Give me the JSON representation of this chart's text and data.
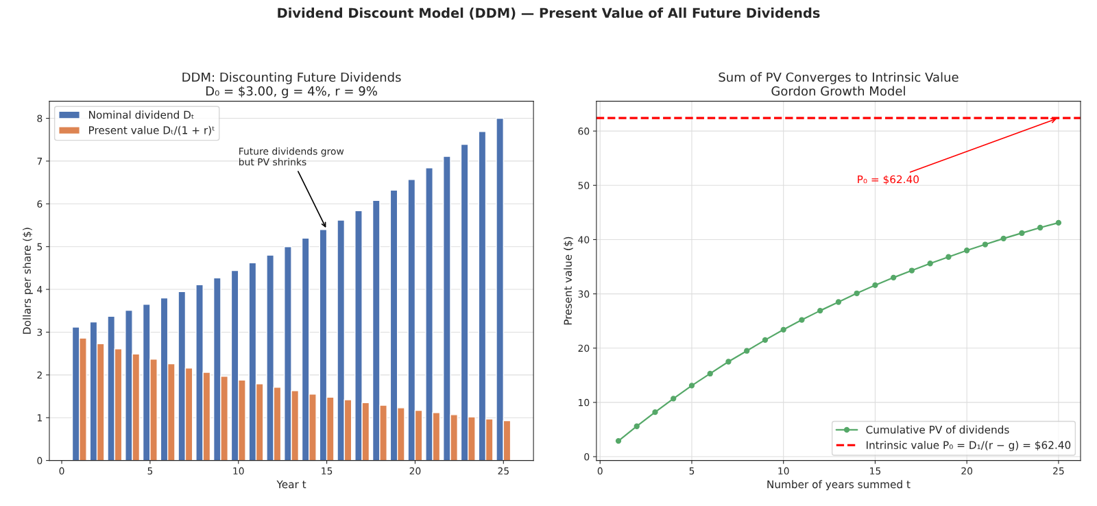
{
  "chart_data": [
    {
      "type": "bar",
      "title": "DDM: Discounting Future Dividends\nD₀ = $3.00, g = 4%, r = 9%",
      "xlabel": "Year t",
      "ylabel": "Dollars per share ($)",
      "x": [
        1,
        2,
        3,
        4,
        5,
        6,
        7,
        8,
        9,
        10,
        11,
        12,
        13,
        14,
        15,
        16,
        17,
        18,
        19,
        20,
        21,
        22,
        23,
        24,
        25
      ],
      "series": [
        {
          "name": "Nominal dividend Dₜ",
          "color": "#4c72b0",
          "values": [
            3.12,
            3.24,
            3.37,
            3.51,
            3.65,
            3.8,
            3.95,
            4.11,
            4.27,
            4.44,
            4.62,
            4.8,
            5.0,
            5.2,
            5.4,
            5.62,
            5.84,
            6.08,
            6.32,
            6.57,
            6.84,
            7.11,
            7.39,
            7.69,
            8.0
          ]
        },
        {
          "name": "Present value Dₜ/(1 + r)ᵗ",
          "color": "#dd8452",
          "values": [
            2.86,
            2.73,
            2.61,
            2.49,
            2.37,
            2.26,
            2.16,
            2.06,
            1.97,
            1.88,
            1.79,
            1.71,
            1.63,
            1.55,
            1.48,
            1.42,
            1.35,
            1.29,
            1.23,
            1.17,
            1.12,
            1.07,
            1.02,
            0.97,
            0.93
          ]
        }
      ],
      "xlim": [
        -0.7,
        26.7
      ],
      "ylim": [
        0,
        8.4
      ],
      "xticks": [
        0,
        5,
        10,
        15,
        20,
        25
      ],
      "yticks": [
        0,
        1,
        2,
        3,
        4,
        5,
        6,
        7,
        8
      ],
      "grid": "y",
      "legend": "top left",
      "annotations": [
        "Dividend Discount Model (DDM) — Present Value of All Future Dividends",
        {
          "text": "Future dividends grow\nbut PV shrinks",
          "x": 15,
          "y": 5.4
        }
      ]
    },
    {
      "type": "line",
      "title": "Sum of PV Converges to Intrinsic Value\nGordon Growth Model",
      "xlabel": "Number of years summed t",
      "ylabel": "Present value ($)",
      "x": [
        1,
        2,
        3,
        4,
        5,
        6,
        7,
        8,
        9,
        10,
        11,
        12,
        13,
        14,
        15,
        16,
        17,
        18,
        19,
        20,
        21,
        22,
        23,
        24,
        25
      ],
      "series": [
        {
          "name": "Cumulative PV of dividends",
          "color": "#55a868",
          "values": [
            2.9,
            5.6,
            8.2,
            10.7,
            13.1,
            15.3,
            17.5,
            19.5,
            21.5,
            23.4,
            25.2,
            26.9,
            28.5,
            30.1,
            31.6,
            33.0,
            34.3,
            35.6,
            36.8,
            38.0,
            39.1,
            40.2,
            41.2,
            42.2,
            43.1
          ]
        }
      ],
      "marker": "circle",
      "line_style": "solid",
      "ref_lines": [
        {
          "axis": "y",
          "value": 62.4,
          "label": "Intrinsic value P₀ = D₁/(r − g) = $62.40",
          "color": "#ff0000",
          "line_style": "dashed"
        }
      ],
      "xlim": [
        -0.2,
        26.2
      ],
      "ylim": [
        -0.7,
        65.5
      ],
      "xticks": [
        0,
        5,
        10,
        15,
        20,
        25
      ],
      "yticks": [
        0,
        10,
        20,
        30,
        40,
        50,
        60
      ],
      "grid": true,
      "legend": "bottom right",
      "annotations": [
        {
          "text": "P₀ = $62.40",
          "x": 25,
          "y": 62.4
        }
      ]
    }
  ]
}
